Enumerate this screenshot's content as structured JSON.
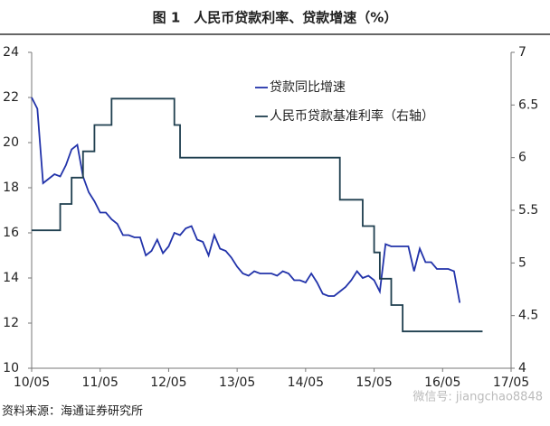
{
  "chart_data": {
    "type": "line",
    "title": "图 1　人民币贷款利率、贷款增速（%）",
    "x": [
      "10/05",
      "10/06",
      "10/07",
      "10/08",
      "10/09",
      "10/10",
      "10/11",
      "10/12",
      "11/01",
      "11/02",
      "11/03",
      "11/04",
      "11/05",
      "11/06",
      "11/07",
      "11/08",
      "11/09",
      "11/10",
      "11/11",
      "11/12",
      "12/01",
      "12/02",
      "12/03",
      "12/04",
      "12/05",
      "12/06",
      "12/07",
      "12/08",
      "12/09",
      "12/10",
      "12/11",
      "12/12",
      "13/01",
      "13/02",
      "13/03",
      "13/04",
      "13/05",
      "13/06",
      "13/07",
      "13/08",
      "13/09",
      "13/10",
      "13/11",
      "13/12",
      "14/01",
      "14/02",
      "14/03",
      "14/04",
      "14/05",
      "14/06",
      "14/07",
      "14/08",
      "14/09",
      "14/10",
      "14/11",
      "14/12",
      "15/01",
      "15/02",
      "15/03",
      "15/04",
      "15/05",
      "15/06",
      "15/07",
      "15/08",
      "15/09",
      "15/10",
      "15/11",
      "15/12",
      "16/01",
      "16/02",
      "16/03",
      "16/04",
      "16/05",
      "16/06",
      "16/07",
      "16/08",
      "16/09",
      "16/10",
      "16/11",
      "16/12"
    ],
    "series": [
      {
        "name": "贷款同比增速",
        "color": "#2233aa",
        "axis": "y",
        "style": "line",
        "values": [
          22.0,
          21.5,
          18.2,
          18.4,
          18.6,
          18.5,
          19.0,
          19.7,
          19.9,
          18.5,
          17.8,
          17.4,
          16.9,
          16.9,
          16.6,
          16.4,
          15.9,
          15.9,
          15.8,
          15.8,
          15.0,
          15.2,
          15.7,
          15.1,
          15.4,
          16.0,
          15.9,
          16.2,
          16.3,
          15.7,
          15.6,
          15.0,
          15.9,
          15.3,
          15.2,
          14.9,
          14.5,
          14.2,
          14.1,
          14.3,
          14.2,
          14.2,
          14.2,
          14.1,
          14.3,
          14.2,
          13.9,
          13.9,
          13.8,
          14.2,
          13.8,
          13.3,
          13.2,
          13.2,
          13.4,
          13.6,
          13.9,
          14.3,
          14.0,
          14.1,
          13.9,
          13.4,
          15.5,
          15.4,
          15.4,
          15.4,
          15.4,
          14.3,
          15.3,
          14.7,
          14.7,
          14.4,
          14.4,
          14.4,
          14.3,
          12.9,
          null,
          null,
          null,
          null
        ]
      },
      {
        "name": "人民币贷款基准利率（右轴）",
        "color": "#1f3f4f",
        "axis": "y2",
        "style": "step",
        "values": [
          5.31,
          5.31,
          5.31,
          5.31,
          5.31,
          5.56,
          5.56,
          5.81,
          5.81,
          6.06,
          6.06,
          6.31,
          6.31,
          6.31,
          6.56,
          6.56,
          6.56,
          6.56,
          6.56,
          6.56,
          6.56,
          6.56,
          6.56,
          6.56,
          6.56,
          6.31,
          6.0,
          6.0,
          6.0,
          6.0,
          6.0,
          6.0,
          6.0,
          6.0,
          6.0,
          6.0,
          6.0,
          6.0,
          6.0,
          6.0,
          6.0,
          6.0,
          6.0,
          6.0,
          6.0,
          6.0,
          6.0,
          6.0,
          6.0,
          6.0,
          6.0,
          6.0,
          6.0,
          6.0,
          5.6,
          5.6,
          5.6,
          5.6,
          5.35,
          5.35,
          5.1,
          4.85,
          4.85,
          4.6,
          4.6,
          4.35,
          4.35,
          4.35,
          4.35,
          4.35,
          4.35,
          4.35,
          4.35,
          4.35,
          4.35,
          4.35,
          4.35,
          4.35,
          4.35,
          4.35
        ]
      }
    ],
    "xlim": [
      "10/05",
      "17/05"
    ],
    "xticks": [
      "10/05",
      "11/05",
      "12/05",
      "13/05",
      "14/05",
      "15/05",
      "16/05",
      "17/05"
    ],
    "ylim": [
      10,
      24
    ],
    "yticks": [
      10,
      12,
      14,
      16,
      18,
      20,
      22,
      24
    ],
    "y2lim": [
      4,
      7
    ],
    "y2ticks": [
      4,
      4.5,
      5,
      5.5,
      6,
      6.5,
      7
    ],
    "grid": false,
    "legend": "upper-right",
    "source": "资料来源：海通证券研究所",
    "watermark": "微信号: jiangchao8848"
  }
}
